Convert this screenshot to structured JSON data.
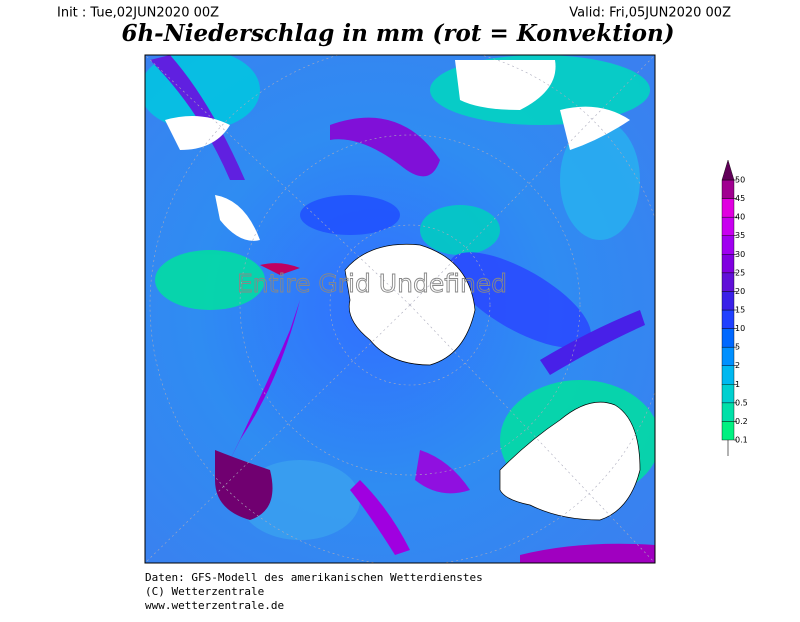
{
  "header": {
    "init": "Init : Tue,02JUN2020 00Z",
    "valid": "Valid: Fri,05JUN2020 00Z",
    "title": "6h-Niederschlag in mm (rot = Konvektion)"
  },
  "map": {
    "overlay_text": "Entire Grid Undefined"
  },
  "colorbar": {
    "levels": [
      0.1,
      0.2,
      0.5,
      1,
      2,
      5,
      10,
      15,
      20,
      25,
      30,
      35,
      40,
      45,
      50
    ],
    "colors": [
      "#00f080",
      "#00e0a8",
      "#00d0d0",
      "#00b8f0",
      "#0090ff",
      "#0068ff",
      "#2040ff",
      "#3a20e8",
      "#6010d8",
      "#8000e0",
      "#a000f0",
      "#c800f0",
      "#e000e0",
      "#a00090",
      "#600058"
    ]
  },
  "footer": {
    "lines": [
      "Daten: GFS-Modell des amerikanischen Wetterdienstes",
      "(C) Wetterzentrale",
      "www.wetterzentrale.de"
    ]
  }
}
